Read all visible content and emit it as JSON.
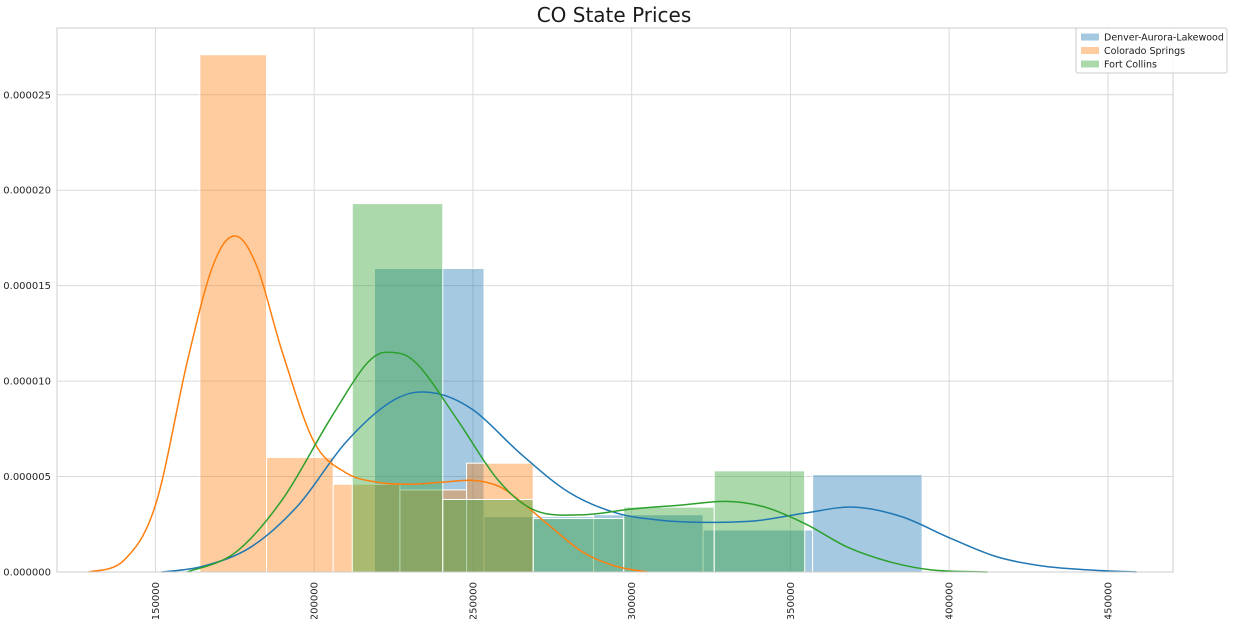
{
  "chart_data": {
    "type": "histogram",
    "title": "CO State Prices",
    "xlabel": "",
    "ylabel": "",
    "xlim": [
      119000,
      470500
    ],
    "ylim": [
      0,
      2.85e-05
    ],
    "xticks": [
      150000,
      200000,
      250000,
      300000,
      350000,
      400000,
      450000
    ],
    "xtick_labels": [
      "150000",
      "200000",
      "250000",
      "300000",
      "350000",
      "400000",
      "450000"
    ],
    "yticks": [
      0,
      5e-06,
      1e-05,
      1.5e-05,
      2e-05,
      2.5e-05
    ],
    "ytick_labels": [
      "0.000000",
      "0.000005",
      "0.000010",
      "0.000015",
      "0.000020",
      "0.000025"
    ],
    "grid": true,
    "legend_position": "top-right",
    "series": [
      {
        "name": "Denver-Aurora-Lakewood",
        "color": "#1f77b4",
        "bars": [
          {
            "x0": 219000,
            "x1": 253500,
            "density": 1.59e-05
          },
          {
            "x0": 253500,
            "x1": 288000,
            "density": 2.9e-06
          },
          {
            "x0": 288000,
            "x1": 322500,
            "density": 3e-06
          },
          {
            "x0": 322500,
            "x1": 357000,
            "density": 2.2e-06
          },
          {
            "x0": 357000,
            "x1": 391500,
            "density": 5.1e-06
          }
        ],
        "kde": [
          [
            152000,
            0.0
          ],
          [
            165000,
            3e-07
          ],
          [
            180000,
            1.3e-06
          ],
          [
            195000,
            3.5e-06
          ],
          [
            210000,
            6.8e-06
          ],
          [
            225000,
            9e-06
          ],
          [
            237000,
            9.4e-06
          ],
          [
            250000,
            8.5e-06
          ],
          [
            265000,
            6.2e-06
          ],
          [
            280000,
            4.2e-06
          ],
          [
            295000,
            3.1e-06
          ],
          [
            310000,
            2.7e-06
          ],
          [
            325000,
            2.6e-06
          ],
          [
            340000,
            2.7e-06
          ],
          [
            355000,
            3.1e-06
          ],
          [
            370000,
            3.4e-06
          ],
          [
            385000,
            2.9e-06
          ],
          [
            400000,
            1.8e-06
          ],
          [
            415000,
            8e-07
          ],
          [
            430000,
            3e-07
          ],
          [
            445000,
            1e-07
          ],
          [
            459000,
            0.0
          ]
        ]
      },
      {
        "name": "Colorado Springs",
        "color": "#ff7f0e",
        "bars": [
          {
            "x0": 164000,
            "x1": 185000,
            "density": 2.71e-05
          },
          {
            "x0": 185000,
            "x1": 206000,
            "density": 6e-06
          },
          {
            "x0": 206000,
            "x1": 227000,
            "density": 4.6e-06
          },
          {
            "x0": 227000,
            "x1": 248000,
            "density": 4.3e-06
          },
          {
            "x0": 248000,
            "x1": 269000,
            "density": 5.7e-06
          }
        ],
        "kde": [
          [
            129000,
            0.0
          ],
          [
            140000,
            6e-07
          ],
          [
            150000,
            3.5e-06
          ],
          [
            160000,
            1.1e-05
          ],
          [
            168000,
            1.6e-05
          ],
          [
            175000,
            1.76e-05
          ],
          [
            182000,
            1.6e-05
          ],
          [
            190000,
            1.15e-05
          ],
          [
            200000,
            6.8e-06
          ],
          [
            210000,
            5.2e-06
          ],
          [
            220000,
            4.7e-06
          ],
          [
            230000,
            4.6e-06
          ],
          [
            240000,
            4.7e-06
          ],
          [
            250000,
            4.8e-06
          ],
          [
            258000,
            4.5e-06
          ],
          [
            265000,
            3.7e-06
          ],
          [
            275000,
            2.3e-06
          ],
          [
            285000,
            1e-06
          ],
          [
            295000,
            3e-07
          ],
          [
            305000,
            0.0
          ]
        ]
      },
      {
        "name": "Fort Collins",
        "color": "#2ca02c",
        "bars": [
          {
            "x0": 212000,
            "x1": 240500,
            "density": 1.93e-05
          },
          {
            "x0": 240500,
            "x1": 269000,
            "density": 3.8e-06
          },
          {
            "x0": 269000,
            "x1": 297500,
            "density": 2.8e-06
          },
          {
            "x0": 297500,
            "x1": 326000,
            "density": 3.4e-06
          },
          {
            "x0": 326000,
            "x1": 354500,
            "density": 5.3e-06
          }
        ],
        "kde": [
          [
            160000,
            0.0
          ],
          [
            175000,
            1e-06
          ],
          [
            190000,
            3.8e-06
          ],
          [
            205000,
            8e-06
          ],
          [
            217000,
            1.1e-05
          ],
          [
            225000,
            1.15e-05
          ],
          [
            233000,
            1.08e-05
          ],
          [
            245000,
            8e-06
          ],
          [
            258000,
            4.8e-06
          ],
          [
            270000,
            3.2e-06
          ],
          [
            285000,
            3e-06
          ],
          [
            300000,
            3.3e-06
          ],
          [
            315000,
            3.5e-06
          ],
          [
            330000,
            3.7e-06
          ],
          [
            342000,
            3.4e-06
          ],
          [
            355000,
            2.5e-06
          ],
          [
            368000,
            1.3e-06
          ],
          [
            382000,
            5e-07
          ],
          [
            395000,
            1e-07
          ],
          [
            412000,
            0.0
          ]
        ]
      }
    ]
  }
}
